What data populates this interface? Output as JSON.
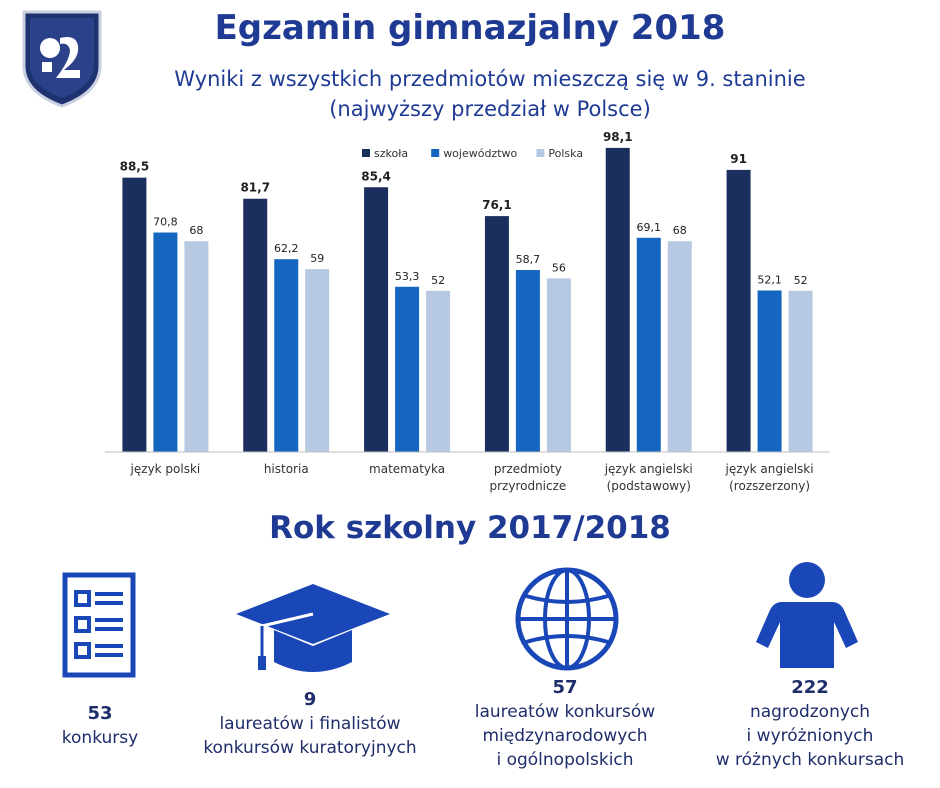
{
  "header": {
    "title": "Egzamin gimnazjalny 2018",
    "subtitle_line1": "Wyniki z wszystkich przedmiotów mieszczą się w 9.  staninie",
    "subtitle_line2": "(najwyższy przedział w Polsce)"
  },
  "colors": {
    "szkola": "#1b2f5e",
    "wojewodztwo": "#1466c0",
    "polska": "#b7c9e2",
    "brand": "#1f3a93"
  },
  "chart_data": {
    "type": "bar",
    "categories": [
      [
        "język polski"
      ],
      [
        "historia"
      ],
      [
        "matematyka"
      ],
      [
        "przedmioty",
        "przyrodnicze"
      ],
      [
        "język angielski",
        "(podstawowy)"
      ],
      [
        "język angielski",
        "(rozszerzony)"
      ]
    ],
    "series": [
      {
        "name": "szkoła",
        "values": [
          88.5,
          81.7,
          85.4,
          76.1,
          98.1,
          91
        ],
        "labels": [
          "88,5",
          "81,7",
          "85,4",
          "76,1",
          "98,1",
          "91"
        ]
      },
      {
        "name": "województwo",
        "values": [
          70.8,
          62.2,
          53.3,
          58.7,
          69.1,
          52.1
        ],
        "labels": [
          "70,8",
          "62,2",
          "53,3",
          "58,7",
          "69,1",
          "52,1"
        ]
      },
      {
        "name": "Polska",
        "values": [
          68,
          59,
          52,
          56,
          68,
          52
        ],
        "labels": [
          "68",
          "59",
          "52",
          "56",
          "68",
          "52"
        ]
      }
    ],
    "ylim": [
      0,
      100
    ],
    "legend": "top-center",
    "grid": false
  },
  "stats": {
    "section_title": "Rok szkolny 2017/2018",
    "items": [
      {
        "icon": "document-list-icon",
        "value": "53",
        "lines": [
          "konkursy"
        ]
      },
      {
        "icon": "graduation-cap-icon",
        "value": "9",
        "lines": [
          "laureatów i finalistów",
          "konkursów kuratoryjnych"
        ]
      },
      {
        "icon": "globe-icon",
        "value": "57",
        "lines": [
          "laureatów konkursów",
          "międzynarodowych",
          "i ogólnopolskich"
        ]
      },
      {
        "icon": "person-icon",
        "value": "222",
        "lines": [
          "nagrodzonych",
          "i wyróżnionych",
          "w różnych konkursach"
        ]
      }
    ]
  }
}
